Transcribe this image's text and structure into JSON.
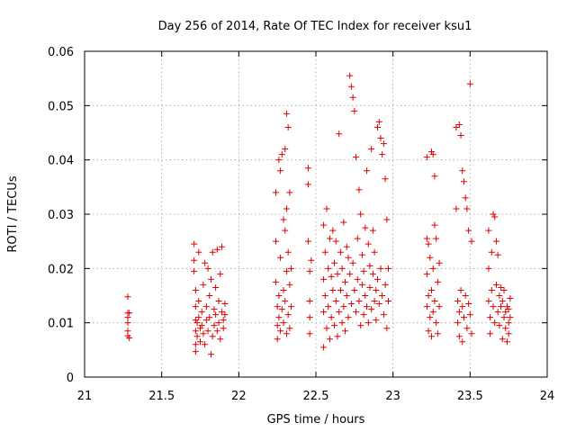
{
  "chart_data": {
    "type": "scatter",
    "title": "Day 256 of 2014, Rate Of TEC Index for receiver ksu1",
    "xlabel": "GPS time / hours",
    "ylabel": "ROTI / TECUs",
    "xlim": [
      21,
      24
    ],
    "ylim": [
      0,
      0.06
    ],
    "xticks": [
      "21",
      "21.5",
      "22",
      "22.5",
      "23",
      "23.5",
      "24"
    ],
    "yticks": [
      "0",
      "0.01",
      "0.02",
      "0.03",
      "0.04",
      "0.05",
      "0.06"
    ],
    "grid": true,
    "marker": "plus",
    "color": "#e00000",
    "series": [
      {
        "name": "ksu1",
        "points": [
          [
            21.28,
            0.0148
          ],
          [
            21.28,
            0.0118
          ],
          [
            21.28,
            0.011
          ],
          [
            21.28,
            0.01
          ],
          [
            21.28,
            0.0085
          ],
          [
            21.28,
            0.0076
          ],
          [
            21.29,
            0.0072
          ],
          [
            21.29,
            0.0118
          ],
          [
            21.71,
            0.0245
          ],
          [
            21.71,
            0.0215
          ],
          [
            21.71,
            0.0195
          ],
          [
            21.72,
            0.016
          ],
          [
            21.72,
            0.013
          ],
          [
            21.72,
            0.0105
          ],
          [
            21.72,
            0.0085
          ],
          [
            21.72,
            0.006
          ],
          [
            21.72,
            0.0047
          ],
          [
            21.73,
            0.01
          ],
          [
            21.73,
            0.0075
          ],
          [
            21.74,
            0.023
          ],
          [
            21.74,
            0.014
          ],
          [
            21.74,
            0.011
          ],
          [
            21.75,
            0.009
          ],
          [
            21.75,
            0.0065
          ],
          [
            21.76,
            0.012
          ],
          [
            21.76,
            0.0095
          ],
          [
            21.77,
            0.008
          ],
          [
            21.77,
            0.017
          ],
          [
            21.78,
            0.006
          ],
          [
            21.78,
            0.021
          ],
          [
            21.79,
            0.0105
          ],
          [
            21.79,
            0.013
          ],
          [
            21.8,
            0.02
          ],
          [
            21.8,
            0.0085
          ],
          [
            21.81,
            0.015
          ],
          [
            21.81,
            0.011
          ],
          [
            21.82,
            0.018
          ],
          [
            21.82,
            0.0042
          ],
          [
            21.83,
            0.023
          ],
          [
            21.83,
            0.0075
          ],
          [
            21.84,
            0.0125
          ],
          [
            21.84,
            0.0095
          ],
          [
            21.85,
            0.0165
          ],
          [
            21.85,
            0.0115
          ],
          [
            21.86,
            0.0235
          ],
          [
            21.86,
            0.0085
          ],
          [
            21.87,
            0.014
          ],
          [
            21.87,
            0.01
          ],
          [
            21.88,
            0.019
          ],
          [
            21.88,
            0.007
          ],
          [
            21.89,
            0.012
          ],
          [
            21.89,
            0.024
          ],
          [
            21.9,
            0.0105
          ],
          [
            21.9,
            0.009
          ],
          [
            21.91,
            0.0135
          ],
          [
            21.91,
            0.0115
          ],
          [
            22.24,
            0.034
          ],
          [
            22.24,
            0.025
          ],
          [
            22.24,
            0.0175
          ],
          [
            22.25,
            0.013
          ],
          [
            22.25,
            0.0095
          ],
          [
            22.25,
            0.007
          ],
          [
            22.26,
            0.04
          ],
          [
            22.26,
            0.015
          ],
          [
            22.26,
            0.011
          ],
          [
            22.27,
            0.038
          ],
          [
            22.27,
            0.022
          ],
          [
            22.27,
            0.0085
          ],
          [
            22.28,
            0.041
          ],
          [
            22.28,
            0.0125
          ],
          [
            22.29,
            0.029
          ],
          [
            22.29,
            0.016
          ],
          [
            22.29,
            0.01
          ],
          [
            22.3,
            0.042
          ],
          [
            22.3,
            0.027
          ],
          [
            22.3,
            0.014
          ],
          [
            22.31,
            0.0485
          ],
          [
            22.31,
            0.031
          ],
          [
            22.31,
            0.0195
          ],
          [
            22.31,
            0.008
          ],
          [
            22.32,
            0.046
          ],
          [
            22.32,
            0.023
          ],
          [
            22.32,
            0.0115
          ],
          [
            22.33,
            0.034
          ],
          [
            22.33,
            0.017
          ],
          [
            22.33,
            0.009
          ],
          [
            22.34,
            0.013
          ],
          [
            22.34,
            0.02
          ],
          [
            22.45,
            0.0385
          ],
          [
            22.45,
            0.0355
          ],
          [
            22.45,
            0.025
          ],
          [
            22.46,
            0.0195
          ],
          [
            22.46,
            0.014
          ],
          [
            22.46,
            0.011
          ],
          [
            22.46,
            0.008
          ],
          [
            22.47,
            0.0215
          ],
          [
            22.55,
            0.028
          ],
          [
            22.55,
            0.018
          ],
          [
            22.55,
            0.012
          ],
          [
            22.55,
            0.0055
          ],
          [
            22.56,
            0.023
          ],
          [
            22.56,
            0.015
          ],
          [
            22.57,
            0.031
          ],
          [
            22.57,
            0.009
          ],
          [
            22.58,
            0.02
          ],
          [
            22.58,
            0.013
          ],
          [
            22.59,
            0.0255
          ],
          [
            22.59,
            0.007
          ],
          [
            22.6,
            0.0185
          ],
          [
            22.6,
            0.011
          ],
          [
            22.61,
            0.027
          ],
          [
            22.61,
            0.016
          ],
          [
            22.62,
            0.021
          ],
          [
            22.62,
            0.0095
          ],
          [
            22.63,
            0.025
          ],
          [
            22.63,
            0.014
          ],
          [
            22.64,
            0.019
          ],
          [
            22.64,
            0.0075
          ],
          [
            22.65,
            0.0448
          ],
          [
            22.65,
            0.012
          ],
          [
            22.66,
            0.023
          ],
          [
            22.66,
            0.016
          ],
          [
            22.67,
            0.02
          ],
          [
            22.67,
            0.01
          ],
          [
            22.68,
            0.0285
          ],
          [
            22.68,
            0.013
          ],
          [
            22.69,
            0.0175
          ],
          [
            22.69,
            0.0085
          ],
          [
            22.7,
            0.024
          ],
          [
            22.7,
            0.015
          ],
          [
            22.71,
            0.022
          ],
          [
            22.71,
            0.011
          ],
          [
            22.72,
            0.0555
          ],
          [
            22.72,
            0.019
          ],
          [
            22.73,
            0.0535
          ],
          [
            22.73,
            0.0135
          ],
          [
            22.74,
            0.0515
          ],
          [
            22.74,
            0.021
          ],
          [
            22.75,
            0.049
          ],
          [
            22.75,
            0.016
          ],
          [
            22.76,
            0.0405
          ],
          [
            22.76,
            0.012
          ],
          [
            22.77,
            0.0255
          ],
          [
            22.77,
            0.018
          ],
          [
            22.78,
            0.0345
          ],
          [
            22.78,
            0.014
          ],
          [
            22.79,
            0.03
          ],
          [
            22.79,
            0.0095
          ],
          [
            22.8,
            0.0225
          ],
          [
            22.8,
            0.017
          ],
          [
            22.81,
            0.0195
          ],
          [
            22.81,
            0.0115
          ],
          [
            22.82,
            0.0275
          ],
          [
            22.82,
            0.015
          ],
          [
            22.83,
            0.038
          ],
          [
            22.83,
            0.013
          ],
          [
            22.84,
            0.0245
          ],
          [
            22.84,
            0.01
          ],
          [
            22.85,
            0.0205
          ],
          [
            22.85,
            0.0165
          ],
          [
            22.86,
            0.042
          ],
          [
            22.86,
            0.0125
          ],
          [
            22.87,
            0.027
          ],
          [
            22.87,
            0.019
          ],
          [
            22.88,
            0.023
          ],
          [
            22.88,
            0.014
          ],
          [
            22.89,
            0.016
          ],
          [
            22.89,
            0.0105
          ],
          [
            22.9,
            0.046
          ],
          [
            22.9,
            0.018
          ],
          [
            22.91,
            0.047
          ],
          [
            22.91,
            0.0135
          ],
          [
            22.92,
            0.044
          ],
          [
            22.92,
            0.02
          ],
          [
            22.93,
            0.041
          ],
          [
            22.93,
            0.015
          ],
          [
            22.94,
            0.043
          ],
          [
            22.94,
            0.0115
          ],
          [
            22.95,
            0.0365
          ],
          [
            22.95,
            0.017
          ],
          [
            22.96,
            0.029
          ],
          [
            22.96,
            0.009
          ],
          [
            22.97,
            0.02
          ],
          [
            22.97,
            0.014
          ],
          [
            23.22,
            0.0405
          ],
          [
            23.22,
            0.0255
          ],
          [
            23.22,
            0.019
          ],
          [
            23.22,
            0.013
          ],
          [
            23.23,
            0.0245
          ],
          [
            23.23,
            0.015
          ],
          [
            23.23,
            0.0085
          ],
          [
            23.24,
            0.022
          ],
          [
            23.24,
            0.011
          ],
          [
            23.25,
            0.0415
          ],
          [
            23.25,
            0.016
          ],
          [
            23.25,
            0.0075
          ],
          [
            23.26,
            0.041
          ],
          [
            23.26,
            0.02
          ],
          [
            23.26,
            0.012
          ],
          [
            23.27,
            0.037
          ],
          [
            23.27,
            0.028
          ],
          [
            23.27,
            0.014
          ],
          [
            23.28,
            0.0255
          ],
          [
            23.28,
            0.01
          ],
          [
            23.29,
            0.0175
          ],
          [
            23.29,
            0.008
          ],
          [
            23.3,
            0.013
          ],
          [
            23.3,
            0.021
          ],
          [
            23.41,
            0.046
          ],
          [
            23.41,
            0.031
          ],
          [
            23.42,
            0.014
          ],
          [
            23.42,
            0.01
          ],
          [
            23.43,
            0.0465
          ],
          [
            23.43,
            0.012
          ],
          [
            23.43,
            0.0075
          ],
          [
            23.44,
            0.0445
          ],
          [
            23.44,
            0.016
          ],
          [
            23.45,
            0.038
          ],
          [
            23.45,
            0.013
          ],
          [
            23.45,
            0.0065
          ],
          [
            23.46,
            0.036
          ],
          [
            23.46,
            0.011
          ],
          [
            23.47,
            0.033
          ],
          [
            23.47,
            0.015
          ],
          [
            23.48,
            0.031
          ],
          [
            23.48,
            0.009
          ],
          [
            23.49,
            0.027
          ],
          [
            23.49,
            0.0135
          ],
          [
            23.5,
            0.054
          ],
          [
            23.5,
            0.0115
          ],
          [
            23.51,
            0.025
          ],
          [
            23.51,
            0.008
          ],
          [
            23.62,
            0.027
          ],
          [
            23.62,
            0.02
          ],
          [
            23.62,
            0.014
          ],
          [
            23.63,
            0.011
          ],
          [
            23.63,
            0.008
          ],
          [
            23.64,
            0.023
          ],
          [
            23.64,
            0.016
          ],
          [
            23.65,
            0.03
          ],
          [
            23.65,
            0.013
          ],
          [
            23.66,
            0.0295
          ],
          [
            23.66,
            0.01
          ],
          [
            23.67,
            0.025
          ],
          [
            23.67,
            0.017
          ],
          [
            23.68,
            0.0225
          ],
          [
            23.68,
            0.012
          ],
          [
            23.69,
            0.015
          ],
          [
            23.69,
            0.0095
          ],
          [
            23.7,
            0.0165
          ],
          [
            23.7,
            0.013
          ],
          [
            23.71,
            0.014
          ],
          [
            23.71,
            0.007
          ],
          [
            23.72,
            0.016
          ],
          [
            23.72,
            0.011
          ],
          [
            23.73,
            0.012
          ],
          [
            23.73,
            0.009
          ],
          [
            23.74,
            0.013
          ],
          [
            23.74,
            0.0065
          ],
          [
            23.75,
            0.01
          ],
          [
            23.75,
            0.008
          ],
          [
            23.76,
            0.011
          ],
          [
            23.76,
            0.0145
          ],
          [
            23.75,
            0.0125
          ]
        ]
      }
    ]
  }
}
